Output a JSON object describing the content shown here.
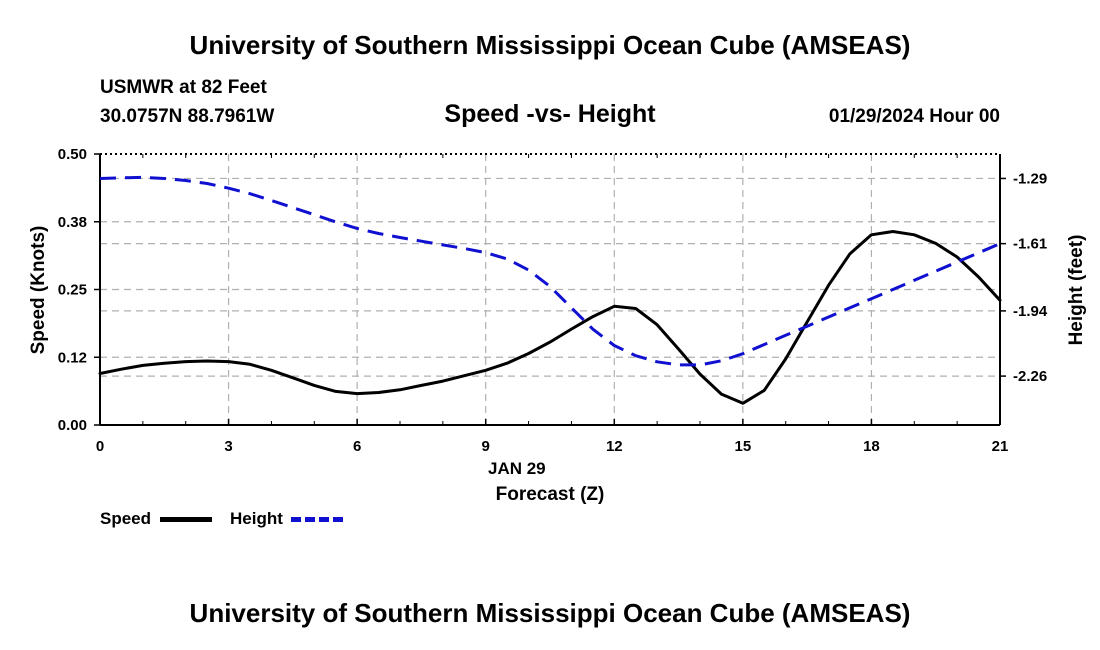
{
  "header": {
    "title": "University of Southern Mississippi Ocean Cube (AMSEAS)",
    "station": "USMWR at 82 Feet",
    "coords": "30.0757N  88.7961W",
    "subtitle": "Speed -vs- Height",
    "date": "01/29/2024 Hour 00"
  },
  "footer": {
    "title": "University of Southern Mississippi Ocean Cube (AMSEAS)"
  },
  "legend": {
    "speed_label": "Speed",
    "height_label": "Height"
  },
  "colors": {
    "speed": "#000000",
    "height": "#1010d0",
    "grid": "#b0b0b0"
  },
  "chart_data": {
    "type": "line",
    "title": "Speed -vs- Height",
    "xlabel": "Forecast (Z)",
    "xlabel_date": "JAN 29",
    "ylabel": "Speed (Knots)",
    "y2label": "Height (feet)",
    "xlim": [
      0,
      21
    ],
    "ylim": [
      0,
      0.5
    ],
    "y2lim": [
      -2.5,
      -1.17
    ],
    "x_ticks": [
      0,
      3,
      6,
      9,
      12,
      15,
      18,
      21
    ],
    "x_tick_labels": [
      "0",
      "3",
      "6",
      "9",
      "12",
      "15",
      "18",
      "21"
    ],
    "y_ticks": [
      0,
      0.125,
      0.25,
      0.375,
      0.5
    ],
    "y_tick_labels": [
      "0.00",
      "0.12",
      "0.25",
      "0.38",
      "0.50"
    ],
    "y2_ticks": [
      -2.26,
      -1.94,
      -1.61,
      -1.29
    ],
    "y2_tick_labels": [
      "-2.26",
      "-1.94",
      "-1.61",
      "-1.29"
    ],
    "grid": true,
    "series": [
      {
        "name": "Speed",
        "axis": "left",
        "style": "solid",
        "x": [
          0,
          0.5,
          1,
          1.5,
          2,
          2.5,
          3,
          3.5,
          4,
          4.5,
          5,
          5.5,
          6,
          6.5,
          7,
          7.5,
          8,
          8.5,
          9,
          9.5,
          10,
          10.5,
          11,
          11.5,
          12,
          12.5,
          13,
          13.5,
          14,
          14.5,
          15,
          15.5,
          16,
          16.5,
          17,
          17.5,
          18,
          18.5,
          19,
          19.5,
          20,
          20.5,
          21
        ],
        "values": [
          0.095,
          0.103,
          0.11,
          0.114,
          0.117,
          0.118,
          0.117,
          0.112,
          0.101,
          0.087,
          0.073,
          0.062,
          0.058,
          0.06,
          0.065,
          0.073,
          0.081,
          0.091,
          0.101,
          0.114,
          0.132,
          0.153,
          0.177,
          0.2,
          0.219,
          0.215,
          0.185,
          0.14,
          0.094,
          0.057,
          0.04,
          0.064,
          0.122,
          0.19,
          0.258,
          0.316,
          0.351,
          0.357,
          0.351,
          0.335,
          0.31,
          0.273,
          0.23
        ]
      },
      {
        "name": "Height",
        "axis": "right",
        "style": "dashed",
        "x": [
          0,
          0.5,
          1,
          1.5,
          2,
          2.5,
          3,
          3.5,
          4,
          4.5,
          5,
          5.5,
          6,
          6.5,
          7,
          7.5,
          8,
          8.5,
          9,
          9.5,
          10,
          10.5,
          11,
          11.5,
          12,
          12.5,
          13,
          13.5,
          14,
          14.5,
          15,
          15.5,
          16,
          16.5,
          17,
          17.5,
          18,
          18.5,
          19,
          19.5,
          20,
          20.5,
          21
        ],
        "values": [
          -1.29,
          -1.287,
          -1.285,
          -1.29,
          -1.3,
          -1.315,
          -1.338,
          -1.365,
          -1.398,
          -1.433,
          -1.468,
          -1.503,
          -1.535,
          -1.56,
          -1.58,
          -1.598,
          -1.616,
          -1.634,
          -1.654,
          -1.685,
          -1.74,
          -1.82,
          -1.925,
          -2.03,
          -2.11,
          -2.16,
          -2.19,
          -2.205,
          -2.205,
          -2.185,
          -2.15,
          -2.105,
          -2.06,
          -2.015,
          -1.97,
          -1.925,
          -1.88,
          -1.835,
          -1.79,
          -1.745,
          -1.7,
          -1.655,
          -1.61
        ]
      }
    ]
  }
}
